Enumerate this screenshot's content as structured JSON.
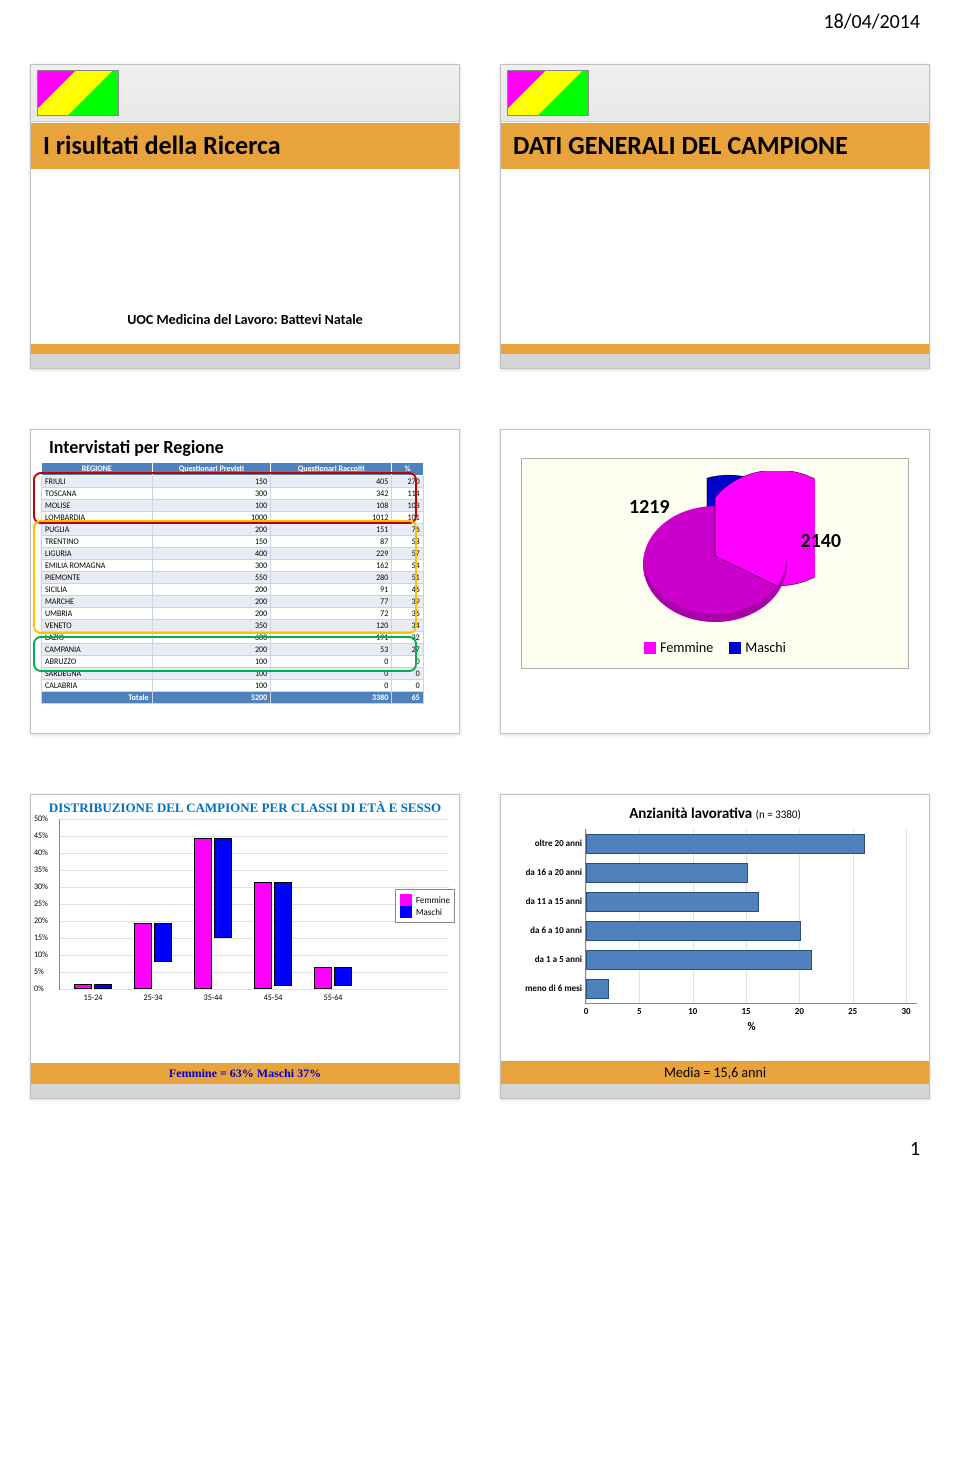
{
  "date": "18/04/2014",
  "page_number": "1",
  "slide1": {
    "title": "I risultati della Ricerca",
    "subtitle": "UOC Medicina del Lavoro: Battevi Natale"
  },
  "slide2": {
    "title": "DATI GENERALI DEL CAMPIONE"
  },
  "slide3": {
    "title": "Intervistati per Regione",
    "columns": [
      "REGIONE",
      "Questionari Previsti",
      "Questionari Raccolti",
      "%"
    ],
    "rows": [
      [
        "FRIULI",
        "150",
        "405",
        "270"
      ],
      [
        "TOSCANA",
        "300",
        "342",
        "114"
      ],
      [
        "MOLISE",
        "100",
        "108",
        "108"
      ],
      [
        "LOMBARDIA",
        "1000",
        "1012",
        "101"
      ],
      [
        "PUGLIA",
        "200",
        "151",
        "76"
      ],
      [
        "TRENTINO",
        "150",
        "87",
        "58"
      ],
      [
        "LIGURIA",
        "400",
        "229",
        "57"
      ],
      [
        "EMILIA ROMAGNA",
        "300",
        "162",
        "54"
      ],
      [
        "PIEMONTE",
        "550",
        "280",
        "51"
      ],
      [
        "SICILIA",
        "200",
        "91",
        "46"
      ],
      [
        "MARCHE",
        "200",
        "77",
        "39"
      ],
      [
        "UMBRIA",
        "200",
        "72",
        "36"
      ],
      [
        "VENETO",
        "350",
        "120",
        "34"
      ],
      [
        "LAZIO",
        "600",
        "191",
        "32"
      ],
      [
        "CAMPANIA",
        "200",
        "53",
        "27"
      ],
      [
        "ABRUZZO",
        "100",
        "0",
        "0"
      ],
      [
        "SARDEGNA",
        "100",
        "0",
        "0"
      ],
      [
        "CALABRIA",
        "100",
        "0",
        "0"
      ]
    ],
    "totale": [
      "Totale",
      "5200",
      "3380",
      "65"
    ]
  },
  "slide4": {
    "values": {
      "femmine": 2140,
      "maschi": 1219
    },
    "labels": {
      "femmine": "Femmine",
      "maschi": "Maschi"
    },
    "colors": {
      "femmine": "#ff00ff",
      "maschi": "#0000cc"
    },
    "legend_text": {
      "femmine": "Femmine",
      "maschi": "Maschi"
    }
  },
  "slide5": {
    "title": "DISTRIBUZIONE DEL CAMPIONE PER CLASSI DI ETÀ E SESSO",
    "categories": [
      "15-24",
      "25-34",
      "35-44",
      "45-54",
      "55-64"
    ],
    "femmine": [
      1,
      19,
      44,
      31,
      6
    ],
    "maschi": [
      1,
      11,
      29,
      30,
      5
    ],
    "ymax": 50,
    "ytick": 5,
    "legend": {
      "f": "Femmine",
      "m": "Maschi"
    },
    "footer": "Femmine = 63% Maschi 37%",
    "colors": {
      "f": "#ff00ff",
      "m": "#0000ff"
    }
  },
  "slide6": {
    "title": "Anzianità lavorativa",
    "n_label": "(n = 3380)",
    "categories": [
      "oltre 20 anni",
      "da 16 a 20 anni",
      "da 11 a 15 anni",
      "da 6 a 10 anni",
      "da 1 a 5 anni",
      "meno di 6 mesi"
    ],
    "values": [
      26,
      15,
      16,
      20,
      21,
      2
    ],
    "xmax": 30,
    "xtick": 5,
    "xlabel": "%",
    "bar_color": "#4f81bd",
    "footer": "Media = 15,6 anni"
  }
}
